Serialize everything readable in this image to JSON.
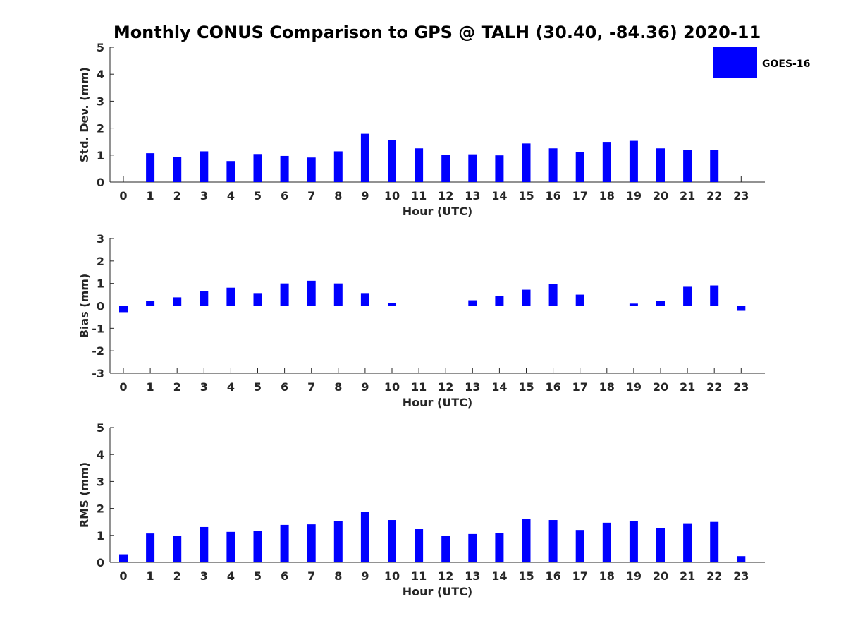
{
  "chart_data": {
    "title": "Monthly CONUS Comparison to GPS @ TALH (30.40, -84.36) 2020-11",
    "type": "bar",
    "legend": {
      "placement": "top-right",
      "entries": [
        "GOES-16"
      ]
    },
    "categories": [
      "0",
      "1",
      "2",
      "3",
      "4",
      "5",
      "6",
      "7",
      "8",
      "9",
      "10",
      "11",
      "12",
      "13",
      "14",
      "15",
      "16",
      "17",
      "18",
      "19",
      "20",
      "21",
      "22",
      "23"
    ],
    "color": "#0000ff",
    "panels": [
      {
        "xlabel": "Hour (UTC)",
        "ylabel": "Std. Dev. (mm)",
        "ylim": [
          0,
          5
        ],
        "yticks": [
          "0",
          "1",
          "2",
          "3",
          "4",
          "5"
        ],
        "series": [
          {
            "name": "GOES-16",
            "values": [
              0,
              1.07,
              0.93,
              1.14,
              0.78,
              1.04,
              0.97,
              0.91,
              1.14,
              1.79,
              1.56,
              1.25,
              1.01,
              1.03,
              0.99,
              1.43,
              1.25,
              1.12,
              1.49,
              1.53,
              1.25,
              1.19,
              1.19,
              0
            ]
          }
        ]
      },
      {
        "xlabel": "Hour (UTC)",
        "ylabel": "Bias (mm)",
        "ylim": [
          -3,
          3
        ],
        "yticks": [
          "-3",
          "-2",
          "-1",
          "0",
          "1",
          "2",
          "3"
        ],
        "series": [
          {
            "name": "GOES-16",
            "values": [
              -0.28,
              0.22,
              0.38,
              0.66,
              0.81,
              0.57,
              1.0,
              1.12,
              1.0,
              0.57,
              0.13,
              0,
              0,
              0.25,
              0.44,
              0.72,
              0.97,
              0.5,
              0,
              0.1,
              0.22,
              0.85,
              0.91,
              -0.22
            ]
          }
        ]
      },
      {
        "xlabel": "Hour (UTC)",
        "ylabel": "RMS (mm)",
        "ylim": [
          0,
          5
        ],
        "yticks": [
          "0",
          "1",
          "2",
          "3",
          "4",
          "5"
        ],
        "series": [
          {
            "name": "GOES-16",
            "values": [
              0.3,
              1.07,
              0.99,
              1.31,
              1.13,
              1.17,
              1.39,
              1.41,
              1.52,
              1.88,
              1.57,
              1.23,
              0.99,
              1.05,
              1.08,
              1.6,
              1.57,
              1.2,
              1.47,
              1.52,
              1.26,
              1.45,
              1.5,
              0.23
            ]
          }
        ]
      }
    ]
  }
}
